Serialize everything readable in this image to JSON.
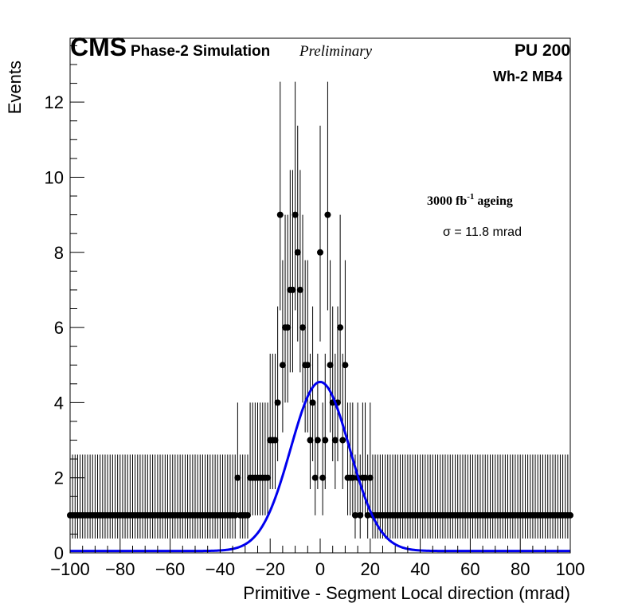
{
  "chart_data": {
    "type": "scatter",
    "header": {
      "experiment": "CMS",
      "subtitle": "Phase-2 Simulation",
      "status": "Preliminary",
      "pileup": "PU 200"
    },
    "region_label": "Wh-2 MB4",
    "annotations": {
      "ageing_main": "3000 fb",
      "ageing_sup": "-1",
      "ageing_rest": " ageing",
      "sigma": "σ = 11.8 mrad"
    },
    "xlabel": "Primitive - Segment Local direction (mrad)",
    "ylabel": "Events",
    "xlim": [
      -100,
      100
    ],
    "ylim": [
      0,
      13.7
    ],
    "xticks": [
      -100,
      -80,
      -60,
      -40,
      -20,
      0,
      20,
      40,
      60,
      80,
      100
    ],
    "xtick_labels": [
      "−100",
      "−80",
      "−60",
      "−40",
      "−20",
      "0",
      "20",
      "40",
      "60",
      "80",
      "100"
    ],
    "yticks": [
      0,
      2,
      4,
      6,
      8,
      10,
      12
    ],
    "ytick_labels": [
      "0",
      "2",
      "4",
      "6",
      "8",
      "10",
      "12"
    ],
    "bin_width": 1,
    "series": [
      {
        "kind": "histogram-points",
        "x": [
          -100,
          -99,
          -98,
          -97,
          -96,
          -95,
          -94,
          -93,
          -92,
          -91,
          -90,
          -89,
          -88,
          -87,
          -86,
          -85,
          -84,
          -83,
          -82,
          -81,
          -80,
          -79,
          -78,
          -77,
          -76,
          -75,
          -74,
          -73,
          -72,
          -71,
          -70,
          -69,
          -68,
          -67,
          -66,
          -65,
          -64,
          -63,
          -62,
          -61,
          -60,
          -59,
          -58,
          -57,
          -56,
          -55,
          -54,
          -53,
          -52,
          -51,
          -50,
          -49,
          -48,
          -47,
          -46,
          -45,
          -44,
          -43,
          -42,
          -41,
          -40,
          -39,
          -38,
          -37,
          -36,
          -35,
          -34,
          -33,
          -32,
          -31,
          -30,
          -29,
          -28,
          -27,
          -26,
          -25,
          -24,
          -23,
          -22,
          -21,
          -20,
          -19,
          -18,
          -17,
          -16,
          -15,
          -14,
          -13,
          -12,
          -11,
          -10,
          -9,
          -8,
          -7,
          -6,
          -5,
          -4,
          -3,
          -2,
          -1,
          0,
          1,
          2,
          3,
          4,
          5,
          6,
          7,
          8,
          9,
          10,
          11,
          12,
          13,
          14,
          15,
          16,
          17,
          18,
          19,
          20,
          21,
          22,
          23,
          24,
          25,
          26,
          27,
          28,
          29,
          30,
          31,
          32,
          33,
          34,
          35,
          36,
          37,
          38,
          39,
          40,
          41,
          42,
          43,
          44,
          45,
          46,
          47,
          48,
          49,
          50,
          51,
          52,
          53,
          54,
          55,
          56,
          57,
          58,
          59,
          60,
          61,
          62,
          63,
          64,
          65,
          66,
          67,
          68,
          69,
          70,
          71,
          72,
          73,
          74,
          75,
          76,
          77,
          78,
          79,
          80,
          81,
          82,
          83,
          84,
          85,
          86,
          87,
          88,
          89,
          90,
          91,
          92,
          93,
          94,
          95,
          96,
          97,
          98,
          99,
          100
        ],
        "y": [
          1,
          1,
          1,
          1,
          1,
          1,
          1,
          1,
          1,
          1,
          1,
          1,
          1,
          1,
          1,
          1,
          1,
          1,
          1,
          1,
          1,
          1,
          1,
          1,
          1,
          1,
          1,
          1,
          1,
          1,
          1,
          1,
          1,
          1,
          1,
          1,
          1,
          1,
          1,
          1,
          1,
          1,
          1,
          1,
          1,
          1,
          1,
          1,
          1,
          1,
          1,
          1,
          1,
          1,
          1,
          1,
          1,
          1,
          1,
          1,
          1,
          1,
          1,
          1,
          1,
          1,
          1,
          2,
          1,
          1,
          1,
          1,
          2,
          2,
          2,
          2,
          2,
          2,
          2,
          2,
          3,
          3,
          3,
          4,
          9,
          5,
          6,
          6,
          7,
          7,
          9,
          8,
          7,
          6,
          5,
          5,
          3,
          4,
          2,
          3,
          8,
          2,
          3,
          9,
          5,
          4,
          3,
          4,
          6,
          3,
          5,
          2,
          2,
          2,
          1,
          2,
          1,
          2,
          2,
          1,
          2,
          1,
          1,
          1,
          1,
          1,
          1,
          1,
          1,
          1,
          1,
          1,
          1,
          1,
          1,
          1,
          1,
          1,
          1,
          1,
          1,
          1,
          1,
          1,
          1,
          1,
          1,
          1,
          1,
          1,
          1,
          1,
          1,
          1,
          1,
          1,
          1,
          1,
          1,
          1,
          1,
          1,
          1,
          1,
          1,
          1,
          1,
          1,
          1,
          1,
          1,
          1,
          1,
          1,
          1,
          1,
          1,
          1,
          1,
          1,
          1,
          1,
          1,
          1,
          1,
          1,
          1,
          1,
          1,
          1,
          1,
          1,
          1,
          1,
          1,
          1,
          1,
          1,
          1,
          1,
          1
        ]
      },
      {
        "kind": "gaussian-fit",
        "color": "#0000ee",
        "amplitude": 4.5,
        "mean": 0,
        "sigma": 11.8,
        "baseline": 0.05
      }
    ],
    "colors": {
      "points": "#000000",
      "fit": "#0000ee",
      "frame": "#000000",
      "background": "#ffffff"
    },
    "grid": false
  }
}
